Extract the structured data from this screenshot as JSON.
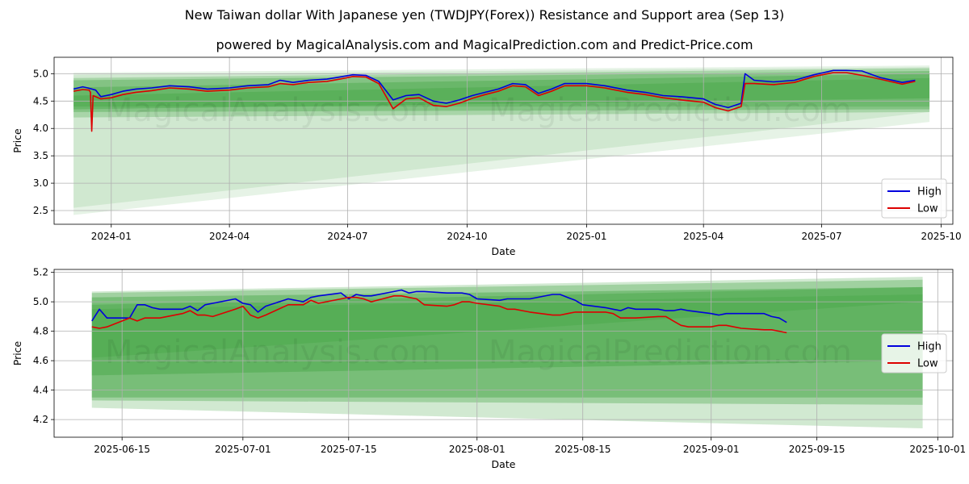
{
  "header": {
    "title": "New Taiwan dollar With Japanese yen (TWDJPY(Forex)) Resistance and Support area (Sep 13)",
    "subtitle": "powered by MagicalAnalysis.com and MagicalPrediction.com and Predict-Price.com"
  },
  "watermarks": [
    "MagicalAnalysis.com",
    "MagicalPrediction.com"
  ],
  "colors": {
    "high": "#0000dd",
    "low": "#dd0000",
    "band": "#2e9a2e",
    "grid": "#b0b0b0"
  },
  "chart_data": [
    {
      "type": "line",
      "xlabel": "Date",
      "ylabel": "Price",
      "xlim": [
        "2023-11-18",
        "2025-10-10"
      ],
      "ylim": [
        2.25,
        5.3
      ],
      "yticks": [
        2.5,
        3.0,
        3.5,
        4.0,
        4.5,
        5.0
      ],
      "xticks": [
        {
          "date": "2024-01-01",
          "label": "2024-01"
        },
        {
          "date": "2024-04-01",
          "label": "2024-04"
        },
        {
          "date": "2024-07-01",
          "label": "2024-07"
        },
        {
          "date": "2024-10-01",
          "label": "2024-10"
        },
        {
          "date": "2025-01-01",
          "label": "2025-01"
        },
        {
          "date": "2025-04-01",
          "label": "2025-04"
        },
        {
          "date": "2025-07-01",
          "label": "2025-07"
        },
        {
          "date": "2025-10-01",
          "label": "2025-10"
        }
      ],
      "legend": {
        "position": "lower-right",
        "entries": [
          "High",
          "Low"
        ]
      },
      "bands": [
        {
          "x": [
            "2023-12-03",
            "2025-09-22"
          ],
          "upper": [
            5.02,
            5.15
          ],
          "lower": [
            2.42,
            4.12
          ],
          "opacity": 0.12
        },
        {
          "x": [
            "2023-12-03",
            "2025-09-22"
          ],
          "upper": [
            4.98,
            5.12
          ],
          "lower": [
            2.55,
            4.3
          ],
          "opacity": 0.12
        },
        {
          "x": [
            "2023-12-03",
            "2025-09-22"
          ],
          "upper": [
            4.92,
            5.1
          ],
          "lower": [
            4.2,
            4.3
          ],
          "opacity": 0.25
        },
        {
          "x": [
            "2023-12-03",
            "2025-09-22"
          ],
          "upper": [
            4.88,
            5.05
          ],
          "lower": [
            4.3,
            4.35
          ],
          "opacity": 0.3
        },
        {
          "x": [
            "2023-12-03",
            "2025-09-22"
          ],
          "upper": [
            4.75,
            5.0
          ],
          "lower": [
            4.35,
            4.55
          ],
          "opacity": 0.3
        },
        {
          "x": [
            "2023-12-03",
            "2025-09-22"
          ],
          "upper": [
            4.6,
            4.92
          ],
          "lower": [
            4.4,
            4.4
          ],
          "opacity": 0.25
        }
      ],
      "series": [
        {
          "name": "High",
          "x": [
            "2023-12-03",
            "2023-12-10",
            "2023-12-14",
            "2023-12-20",
            "2023-12-24",
            "2024-01-01",
            "2024-01-10",
            "2024-01-20",
            "2024-02-01",
            "2024-02-15",
            "2024-03-01",
            "2024-03-15",
            "2024-04-01",
            "2024-04-15",
            "2024-05-01",
            "2024-05-10",
            "2024-05-20",
            "2024-06-01",
            "2024-06-15",
            "2024-06-25",
            "2024-07-05",
            "2024-07-15",
            "2024-07-25",
            "2024-08-05",
            "2024-08-15",
            "2024-08-25",
            "2024-09-05",
            "2024-09-15",
            "2024-09-25",
            "2024-10-05",
            "2024-10-15",
            "2024-10-25",
            "2024-11-05",
            "2024-11-15",
            "2024-11-25",
            "2024-12-05",
            "2024-12-15",
            "2025-01-01",
            "2025-01-15",
            "2025-02-01",
            "2025-02-15",
            "2025-03-01",
            "2025-03-15",
            "2025-04-01",
            "2025-04-10",
            "2025-04-20",
            "2025-04-30",
            "2025-05-03",
            "2025-05-10",
            "2025-05-25",
            "2025-06-10",
            "2025-06-25",
            "2025-07-10",
            "2025-07-20",
            "2025-08-01",
            "2025-08-15",
            "2025-09-01",
            "2025-09-11"
          ],
          "values": [
            4.72,
            4.76,
            4.74,
            4.7,
            4.58,
            4.62,
            4.68,
            4.72,
            4.74,
            4.78,
            4.76,
            4.72,
            4.74,
            4.78,
            4.8,
            4.88,
            4.84,
            4.88,
            4.9,
            4.94,
            4.98,
            4.97,
            4.86,
            4.52,
            4.6,
            4.62,
            4.5,
            4.46,
            4.52,
            4.6,
            4.66,
            4.72,
            4.82,
            4.8,
            4.64,
            4.72,
            4.82,
            4.82,
            4.78,
            4.7,
            4.66,
            4.6,
            4.58,
            4.54,
            4.44,
            4.38,
            4.46,
            5.0,
            4.88,
            4.85,
            4.88,
            4.98,
            5.06,
            5.06,
            5.05,
            4.93,
            4.84,
            4.88
          ]
        },
        {
          "name": "Low",
          "x": [
            "2023-12-03",
            "2023-12-10",
            "2023-12-15",
            "2023-12-16",
            "2023-12-17",
            "2023-12-18",
            "2023-12-24",
            "2024-01-01",
            "2024-01-10",
            "2024-01-20",
            "2024-02-01",
            "2024-02-15",
            "2024-03-01",
            "2024-03-15",
            "2024-04-01",
            "2024-04-15",
            "2024-05-01",
            "2024-05-10",
            "2024-05-20",
            "2024-06-01",
            "2024-06-15",
            "2024-06-25",
            "2024-07-05",
            "2024-07-15",
            "2024-07-25",
            "2024-08-05",
            "2024-08-15",
            "2024-08-25",
            "2024-09-05",
            "2024-09-15",
            "2024-09-25",
            "2024-10-05",
            "2024-10-15",
            "2024-10-25",
            "2024-11-05",
            "2024-11-15",
            "2024-11-25",
            "2024-12-05",
            "2024-12-15",
            "2025-01-01",
            "2025-01-15",
            "2025-02-01",
            "2025-02-15",
            "2025-03-01",
            "2025-03-15",
            "2025-04-01",
            "2025-04-10",
            "2025-04-20",
            "2025-04-30",
            "2025-05-03",
            "2025-05-10",
            "2025-05-25",
            "2025-06-10",
            "2025-06-25",
            "2025-07-10",
            "2025-07-20",
            "2025-08-01",
            "2025-08-15",
            "2025-09-01",
            "2025-09-11"
          ],
          "values": [
            4.68,
            4.71,
            4.7,
            4.66,
            3.95,
            4.6,
            4.54,
            4.56,
            4.62,
            4.66,
            4.69,
            4.74,
            4.72,
            4.68,
            4.7,
            4.74,
            4.76,
            4.82,
            4.8,
            4.84,
            4.86,
            4.9,
            4.95,
            4.94,
            4.82,
            4.36,
            4.54,
            4.56,
            4.42,
            4.4,
            4.46,
            4.55,
            4.62,
            4.68,
            4.78,
            4.76,
            4.6,
            4.68,
            4.78,
            4.78,
            4.74,
            4.66,
            4.62,
            4.56,
            4.52,
            4.48,
            4.38,
            4.32,
            4.4,
            4.82,
            4.82,
            4.8,
            4.84,
            4.95,
            5.02,
            5.02,
            4.97,
            4.9,
            4.81,
            4.86
          ]
        }
      ]
    },
    {
      "type": "line",
      "xlabel": "Date",
      "ylabel": "Price",
      "xlim": [
        "2025-06-06",
        "2025-10-03"
      ],
      "ylim": [
        4.08,
        5.22
      ],
      "yticks": [
        4.2,
        4.4,
        4.6,
        4.8,
        5.0,
        5.2
      ],
      "xticks": [
        {
          "date": "2025-06-15",
          "label": "2025-06-15"
        },
        {
          "date": "2025-07-01",
          "label": "2025-07-01"
        },
        {
          "date": "2025-07-15",
          "label": "2025-07-15"
        },
        {
          "date": "2025-08-01",
          "label": "2025-08-01"
        },
        {
          "date": "2025-08-15",
          "label": "2025-08-15"
        },
        {
          "date": "2025-09-01",
          "label": "2025-09-01"
        },
        {
          "date": "2025-09-15",
          "label": "2025-09-15"
        },
        {
          "date": "2025-10-01",
          "label": "2025-10-01"
        }
      ],
      "legend": {
        "position": "center-right",
        "entries": [
          "High",
          "Low"
        ]
      },
      "bands": [
        {
          "x": [
            "2025-06-11",
            "2025-09-29"
          ],
          "upper": [
            5.07,
            5.17
          ],
          "lower": [
            4.28,
            4.14
          ],
          "opacity": 0.22
        },
        {
          "x": [
            "2025-06-11",
            "2025-09-29"
          ],
          "upper": [
            5.06,
            5.15
          ],
          "lower": [
            4.33,
            4.3
          ],
          "opacity": 0.3
        },
        {
          "x": [
            "2025-06-11",
            "2025-09-29"
          ],
          "upper": [
            5.03,
            5.1
          ],
          "lower": [
            4.35,
            4.35
          ],
          "opacity": 0.35
        },
        {
          "x": [
            "2025-06-11",
            "2025-09-29"
          ],
          "upper": [
            4.98,
            5.1
          ],
          "lower": [
            4.5,
            4.6
          ],
          "opacity": 0.3
        },
        {
          "x": [
            "2025-06-11",
            "2025-09-29"
          ],
          "upper": [
            4.95,
            5.05
          ],
          "lower": [
            4.62,
            5.0
          ],
          "opacity": 0.2
        }
      ],
      "series": [
        {
          "name": "High",
          "x": [
            "2025-06-11",
            "2025-06-12",
            "2025-06-13",
            "2025-06-16",
            "2025-06-17",
            "2025-06-18",
            "2025-06-19",
            "2025-06-20",
            "2025-06-23",
            "2025-06-24",
            "2025-06-25",
            "2025-06-26",
            "2025-06-27",
            "2025-06-30",
            "2025-07-01",
            "2025-07-02",
            "2025-07-03",
            "2025-07-04",
            "2025-07-07",
            "2025-07-08",
            "2025-07-09",
            "2025-07-10",
            "2025-07-11",
            "2025-07-14",
            "2025-07-15",
            "2025-07-16",
            "2025-07-17",
            "2025-07-18",
            "2025-07-21",
            "2025-07-22",
            "2025-07-23",
            "2025-07-24",
            "2025-07-25",
            "2025-07-28",
            "2025-07-29",
            "2025-07-30",
            "2025-07-31",
            "2025-08-01",
            "2025-08-04",
            "2025-08-05",
            "2025-08-06",
            "2025-08-07",
            "2025-08-08",
            "2025-08-11",
            "2025-08-12",
            "2025-08-13",
            "2025-08-14",
            "2025-08-15",
            "2025-08-18",
            "2025-08-19",
            "2025-08-20",
            "2025-08-21",
            "2025-08-22",
            "2025-08-25",
            "2025-08-26",
            "2025-08-27",
            "2025-08-28",
            "2025-08-29",
            "2025-09-01",
            "2025-09-02",
            "2025-09-03",
            "2025-09-04",
            "2025-09-05",
            "2025-09-08",
            "2025-09-09",
            "2025-09-10",
            "2025-09-11"
          ],
          "values": [
            4.87,
            4.95,
            4.89,
            4.89,
            4.98,
            4.98,
            4.96,
            4.95,
            4.95,
            4.97,
            4.94,
            4.98,
            4.99,
            5.02,
            4.99,
            4.98,
            4.93,
            4.97,
            5.02,
            5.01,
            5.0,
            5.03,
            5.04,
            5.06,
            5.02,
            5.05,
            5.04,
            5.04,
            5.07,
            5.08,
            5.06,
            5.07,
            5.07,
            5.06,
            5.06,
            5.06,
            5.05,
            5.02,
            5.01,
            5.02,
            5.02,
            5.02,
            5.02,
            5.05,
            5.05,
            5.03,
            5.01,
            4.98,
            4.96,
            4.95,
            4.94,
            4.96,
            4.95,
            4.95,
            4.94,
            4.94,
            4.95,
            4.94,
            4.92,
            4.91,
            4.92,
            4.92,
            4.92,
            4.92,
            4.9,
            4.89,
            4.86
          ]
        },
        {
          "name": "Low",
          "x": [
            "2025-06-11",
            "2025-06-12",
            "2025-06-13",
            "2025-06-16",
            "2025-06-17",
            "2025-06-18",
            "2025-06-19",
            "2025-06-20",
            "2025-06-23",
            "2025-06-24",
            "2025-06-25",
            "2025-06-26",
            "2025-06-27",
            "2025-06-30",
            "2025-07-01",
            "2025-07-02",
            "2025-07-03",
            "2025-07-04",
            "2025-07-07",
            "2025-07-08",
            "2025-07-09",
            "2025-07-10",
            "2025-07-11",
            "2025-07-14",
            "2025-07-15",
            "2025-07-16",
            "2025-07-17",
            "2025-07-18",
            "2025-07-21",
            "2025-07-22",
            "2025-07-23",
            "2025-07-24",
            "2025-07-25",
            "2025-07-28",
            "2025-07-29",
            "2025-07-30",
            "2025-07-31",
            "2025-08-01",
            "2025-08-04",
            "2025-08-05",
            "2025-08-06",
            "2025-08-07",
            "2025-08-08",
            "2025-08-11",
            "2025-08-12",
            "2025-08-13",
            "2025-08-14",
            "2025-08-15",
            "2025-08-18",
            "2025-08-19",
            "2025-08-20",
            "2025-08-21",
            "2025-08-22",
            "2025-08-25",
            "2025-08-26",
            "2025-08-27",
            "2025-08-28",
            "2025-08-29",
            "2025-09-01",
            "2025-09-02",
            "2025-09-03",
            "2025-09-04",
            "2025-09-05",
            "2025-09-08",
            "2025-09-09",
            "2025-09-10",
            "2025-09-11"
          ],
          "values": [
            4.83,
            4.82,
            4.83,
            4.89,
            4.87,
            4.89,
            4.89,
            4.89,
            4.92,
            4.94,
            4.91,
            4.91,
            4.9,
            4.95,
            4.97,
            4.91,
            4.89,
            4.91,
            4.98,
            4.98,
            4.98,
            5.01,
            4.99,
            5.02,
            5.03,
            5.03,
            5.02,
            5.0,
            5.04,
            5.04,
            5.03,
            5.02,
            4.98,
            4.97,
            4.98,
            5.0,
            5.0,
            4.99,
            4.97,
            4.95,
            4.95,
            4.94,
            4.93,
            4.91,
            4.91,
            4.92,
            4.93,
            4.93,
            4.93,
            4.92,
            4.89,
            4.89,
            4.89,
            4.9,
            4.9,
            4.87,
            4.84,
            4.83,
            4.83,
            4.84,
            4.84,
            4.83,
            4.82,
            4.81,
            4.81,
            4.8,
            4.79
          ]
        }
      ]
    }
  ]
}
